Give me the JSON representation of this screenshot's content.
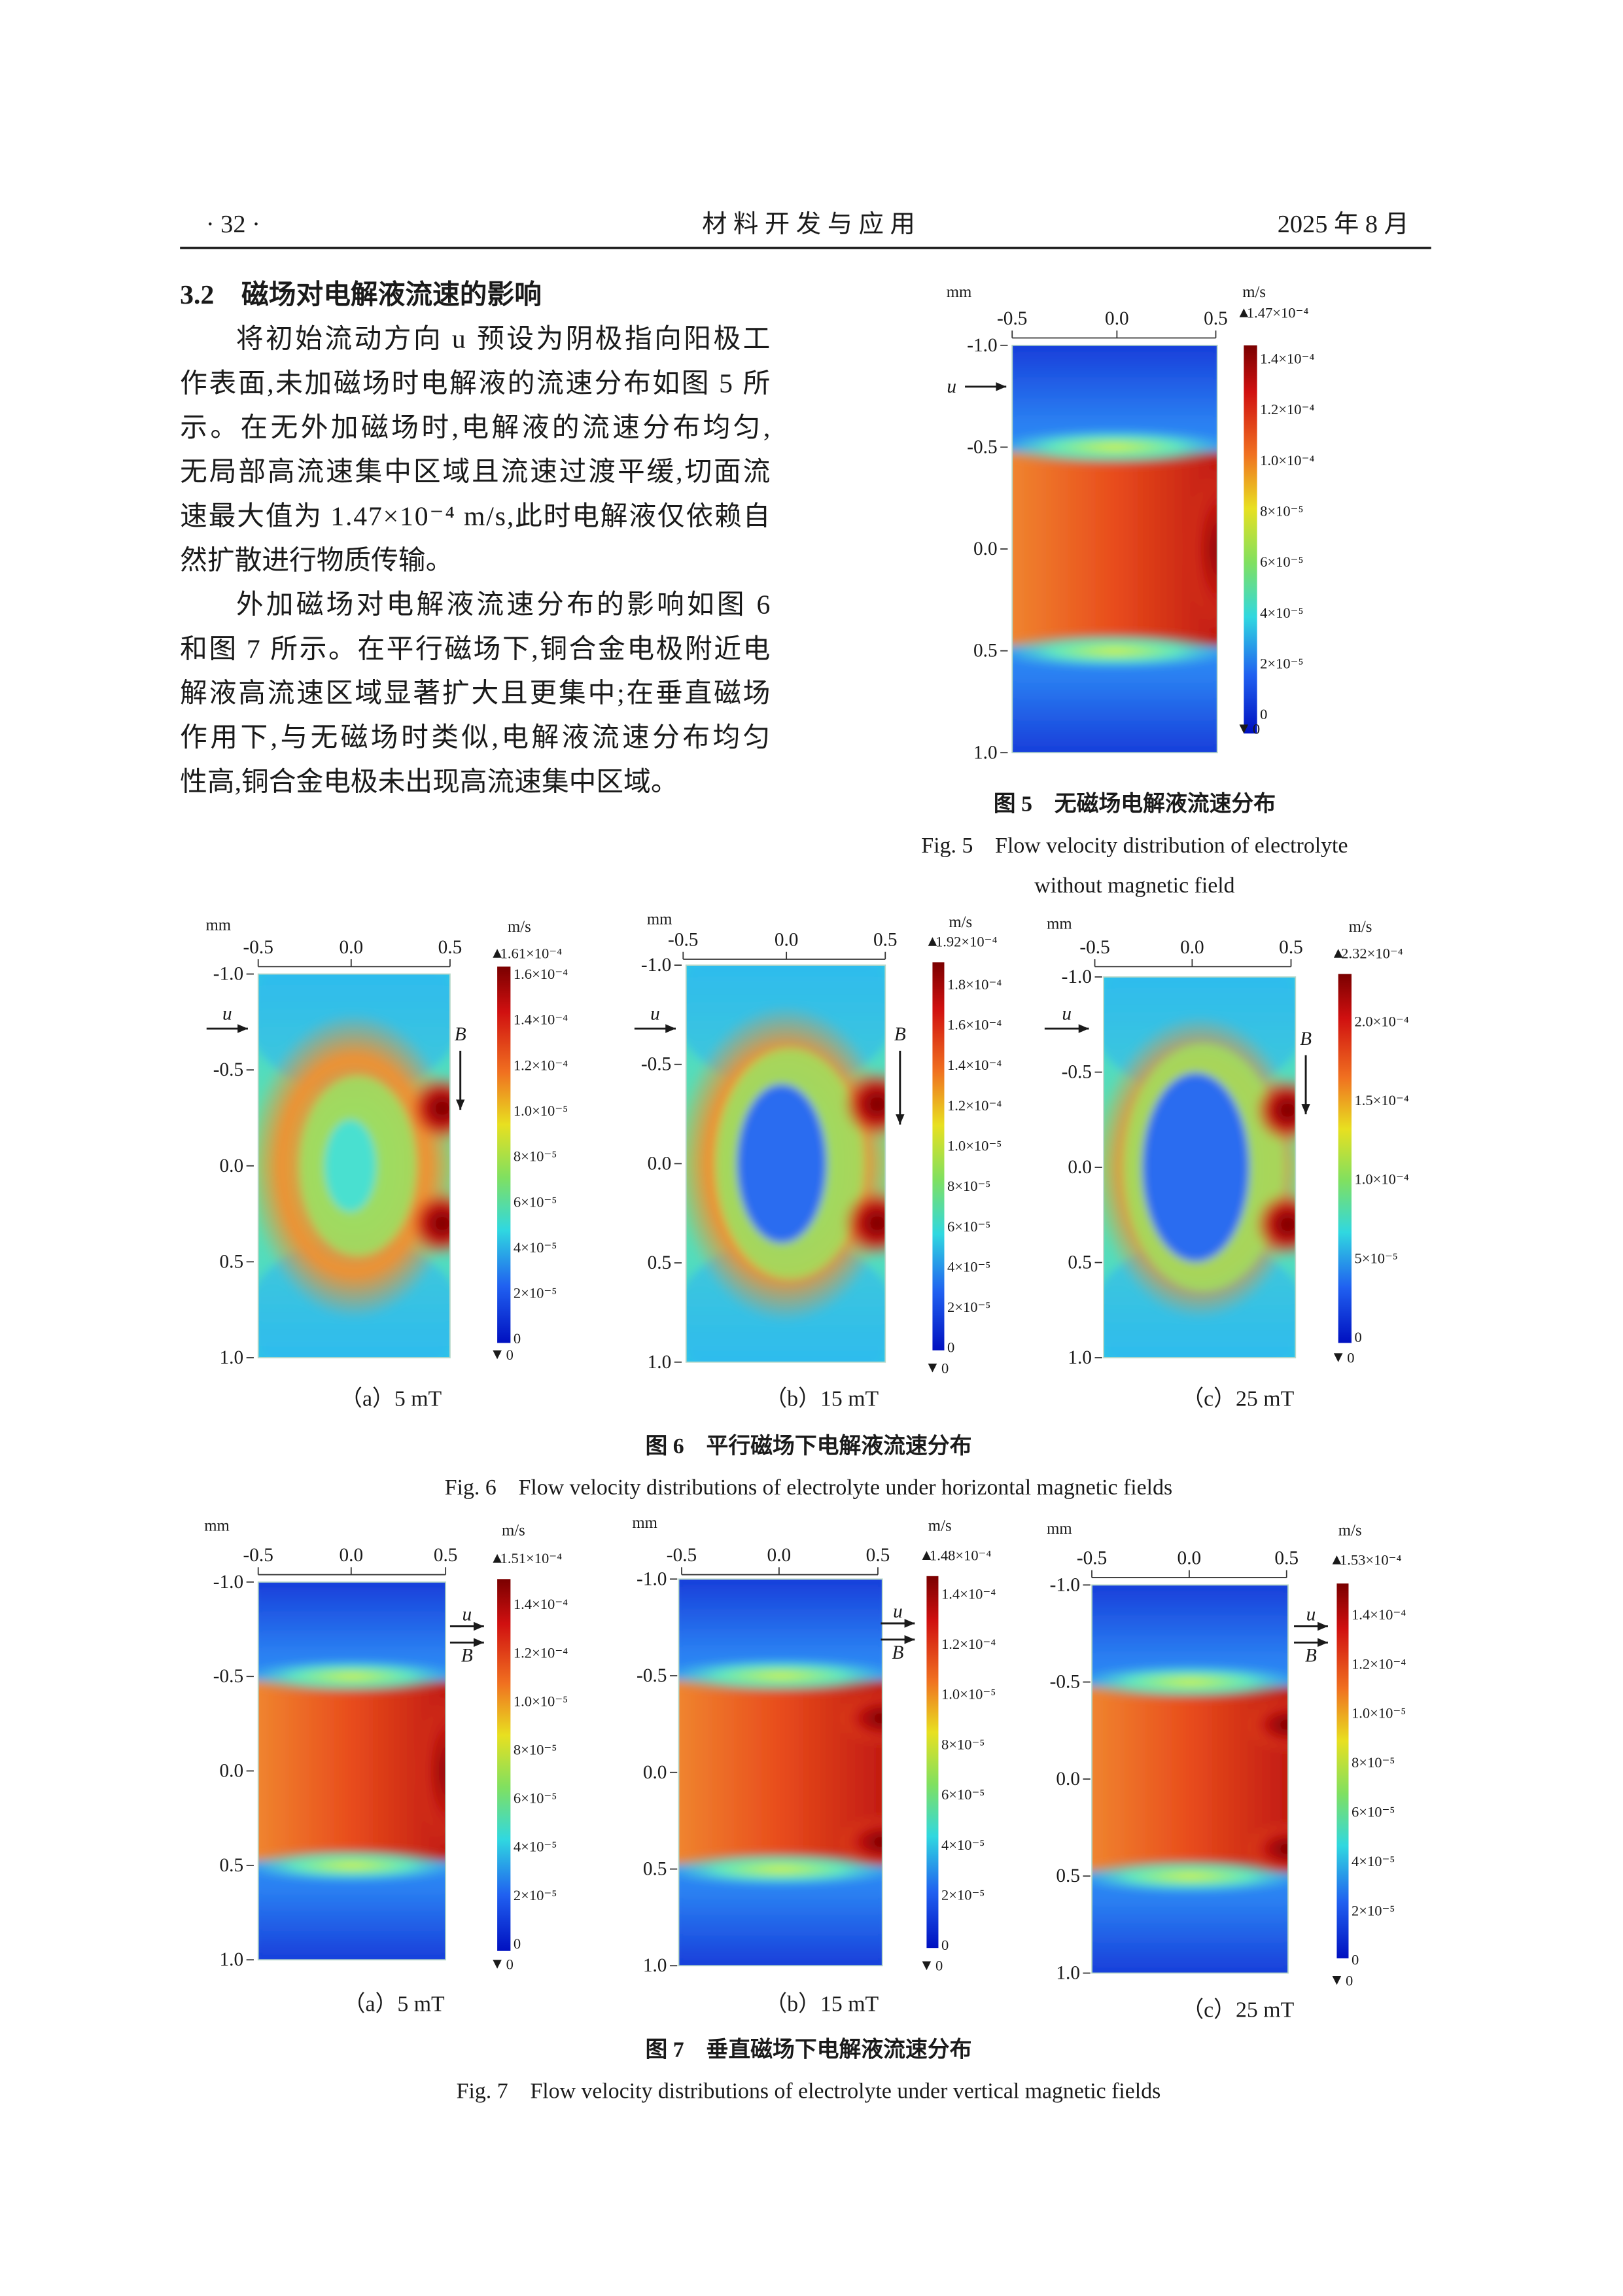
{
  "header": {
    "page": "· 32 ·",
    "journal": "材 料 开 发 与 应 用",
    "date": "2025 年 8 月"
  },
  "section": {
    "heading": "3.2　磁场对电解液流速的影响",
    "paragraphs": [
      [
        "将初始流动方向 u 预设为阴极指向阳极工",
        "作表面,未加磁场时电解液的流速分布如图 5 所",
        "示。在无外加磁场时,电解液的流速分布均匀,",
        "无局部高流速集中区域且流速过渡平缓,切面流",
        "速最大值为 1.47×10⁻⁴ m/s,此时电解液仅依赖自",
        "然扩散进行物质传输。"
      ],
      [
        "外加磁场对电解液流速分布的影响如图 6",
        "和图 7 所示。在平行磁场下,铜合金电极附近电",
        "解液高流速区域显著扩大且更集中;在垂直磁场",
        "作用下,与无磁场时类似,电解液流速分布均匀",
        "性高,铜合金电极未出现高流速集中区域。"
      ]
    ]
  },
  "figures": [
    {
      "caption_zh": "图 5　无磁场电解液流速分布",
      "caption_en": [
        "Fig. 5　Flow velocity distribution of electrolyte",
        "without magnetic field"
      ],
      "panels": [
        {
          "x_unit": "mm",
          "x_ticks": [
            "-0.5",
            "0.0",
            "0.5"
          ],
          "y_ticks": [
            "-1.0",
            "-0.5",
            "0.0",
            "0.5",
            "1.0"
          ],
          "colorbar": {
            "unit": "m/s",
            "max": "1.47×10⁻⁴",
            "ticks": [
              "1.4×10⁻⁴",
              "1.2×10⁻⁴",
              "1.0×10⁻⁴",
              "8×10⁻⁵",
              "6×10⁻⁵",
              "4×10⁻⁵",
              "2×10⁻⁵",
              "0"
            ],
            "min": "0"
          },
          "arrows": {
            "u": "u"
          }
        }
      ]
    },
    {
      "caption_zh": "图 6　平行磁场下电解液流速分布",
      "caption_en": [
        "Fig. 6　Flow velocity distributions of electrolyte under horizontal magnetic fields"
      ],
      "panels": [
        {
          "label": "（a）5 mT",
          "x_unit": "mm",
          "x_ticks": [
            "-0.5",
            "0.0",
            "0.5"
          ],
          "y_ticks": [
            "-1.0",
            "-0.5",
            "0.0",
            "0.5",
            "1.0"
          ],
          "colorbar": {
            "unit": "m/s",
            "max": "1.61×10⁻⁴",
            "ticks": [
              "1.6×10⁻⁴",
              "1.4×10⁻⁴",
              "1.2×10⁻⁴",
              "1.0×10⁻⁵",
              "8×10⁻⁵",
              "6×10⁻⁵",
              "4×10⁻⁵",
              "2×10⁻⁵",
              "0"
            ],
            "min": "0"
          },
          "arrows": {
            "u": "u",
            "B": "B"
          }
        },
        {
          "label": "（b）15 mT",
          "x_unit": "mm",
          "x_ticks": [
            "-0.5",
            "0.0",
            "0.5"
          ],
          "y_ticks": [
            "-1.0",
            "-0.5",
            "0.0",
            "0.5",
            "1.0"
          ],
          "colorbar": {
            "unit": "m/s",
            "max": "1.92×10⁻⁴",
            "ticks": [
              "1.8×10⁻⁴",
              "1.6×10⁻⁴",
              "1.4×10⁻⁴",
              "1.2×10⁻⁴",
              "1.0×10⁻⁵",
              "8×10⁻⁵",
              "6×10⁻⁵",
              "4×10⁻⁵",
              "2×10⁻⁵",
              "0"
            ],
            "min": "0"
          },
          "arrows": {
            "u": "u",
            "B": "B"
          }
        },
        {
          "label": "（c）25 mT",
          "x_unit": "mm",
          "x_ticks": [
            "-0.5",
            "0.0",
            "0.5"
          ],
          "y_ticks": [
            "-1.0",
            "-0.5",
            "0.0",
            "0.5",
            "1.0"
          ],
          "colorbar": {
            "unit": "m/s",
            "max": "2.32×10⁻⁴",
            "ticks": [
              "2.0×10⁻⁴",
              "1.5×10⁻⁴",
              "1.0×10⁻⁴",
              "5×10⁻⁵",
              "0"
            ],
            "min": "0"
          },
          "arrows": {
            "u": "u",
            "B": "B"
          }
        }
      ]
    },
    {
      "caption_zh": "图 7　垂直磁场下电解液流速分布",
      "caption_en": [
        "Fig. 7　Flow velocity distributions of electrolyte under vertical magnetic fields"
      ],
      "panels": [
        {
          "label": "（a）5 mT",
          "x_unit": "mm",
          "x_ticks": [
            "-0.5",
            "0.0",
            "0.5"
          ],
          "y_ticks": [
            "-1.0",
            "-0.5",
            "0.0",
            "0.5",
            "1.0"
          ],
          "colorbar": {
            "unit": "m/s",
            "max": "1.51×10⁻⁴",
            "ticks": [
              "1.4×10⁻⁴",
              "1.2×10⁻⁴",
              "1.0×10⁻⁵",
              "8×10⁻⁵",
              "6×10⁻⁵",
              "4×10⁻⁵",
              "2×10⁻⁵",
              "0"
            ],
            "min": "0"
          },
          "arrows": {
            "u": "u",
            "B": "B"
          }
        },
        {
          "label": "（b）15 mT",
          "x_unit": "mm",
          "x_ticks": [
            "-0.5",
            "0.0",
            "0.5"
          ],
          "y_ticks": [
            "-1.0",
            "-0.5",
            "0.0",
            "0.5",
            "1.0"
          ],
          "colorbar": {
            "unit": "m/s",
            "max": "1.48×10⁻⁴",
            "ticks": [
              "1.4×10⁻⁴",
              "1.2×10⁻⁴",
              "1.0×10⁻⁵",
              "8×10⁻⁵",
              "6×10⁻⁵",
              "4×10⁻⁵",
              "2×10⁻⁵",
              "0"
            ],
            "min": "0"
          },
          "arrows": {
            "u": "u",
            "B": "B"
          }
        },
        {
          "label": "（c）25 mT",
          "x_unit": "mm",
          "x_ticks": [
            "-0.5",
            "0.0",
            "0.5"
          ],
          "y_ticks": [
            "-1.0",
            "-0.5",
            "0.0",
            "0.5",
            "1.0"
          ],
          "colorbar": {
            "unit": "m/s",
            "max": "1.53×10⁻⁴",
            "ticks": [
              "1.4×10⁻⁴",
              "1.2×10⁻⁴",
              "1.0×10⁻⁵",
              "8×10⁻⁵",
              "6×10⁻⁵",
              "4×10⁻⁵",
              "2×10⁻⁵",
              "0"
            ],
            "min": "0"
          },
          "arrows": {
            "u": "u",
            "B": "B"
          }
        }
      ]
    }
  ]
}
